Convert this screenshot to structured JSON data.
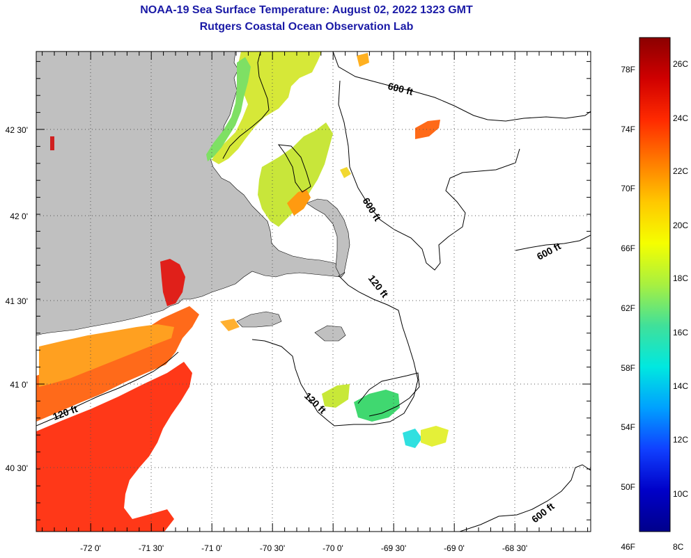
{
  "title": "NOAA-19 Sea Surface Temperature:  August 02, 2022 1323 GMT",
  "subtitle": "Rutgers Coastal Ocean Observation Lab",
  "colors": {
    "title": "#1a1aa6",
    "land": "#c0c0c0",
    "water": "#ffffff",
    "grid": "#555555"
  },
  "longitude_ticks": [
    "-72 0'",
    "-71 30'",
    "-71 0'",
    "-70 30'",
    "-70 0'",
    "-69 30'",
    "-69 0'",
    "-68 30'"
  ],
  "latitude_ticks": [
    "42 30'",
    "42 0'",
    "41 30'",
    "41 0'",
    "40 30'"
  ],
  "contour_labels": [
    "600 ft",
    "600 ft",
    "600 ft",
    "120 ft",
    "120 ft",
    "120 ft",
    "600 ft"
  ],
  "colorbar": {
    "fahrenheit_labels": [
      "78F",
      "74F",
      "70F",
      "66F",
      "62F",
      "58F",
      "54F",
      "50F",
      "46F"
    ],
    "celsius_labels": [
      "26C",
      "24C",
      "22C",
      "20C",
      "18C",
      "16C",
      "14C",
      "12C",
      "10C",
      "8C"
    ],
    "stops": [
      "#8b0000",
      "#d00000",
      "#ff2a00",
      "#ff7a00",
      "#ffc800",
      "#f5ff00",
      "#a8f040",
      "#40e09a",
      "#00e8e0",
      "#00a0ff",
      "#1040ff",
      "#0000c8",
      "#00008b"
    ]
  }
}
